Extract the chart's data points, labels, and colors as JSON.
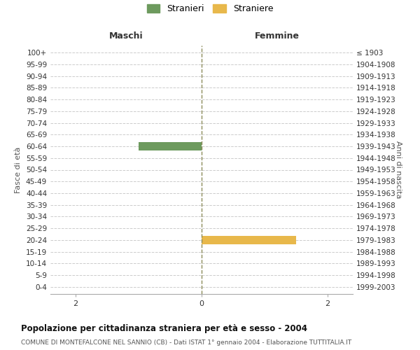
{
  "age_groups": [
    "0-4",
    "5-9",
    "10-14",
    "15-19",
    "20-24",
    "25-29",
    "30-34",
    "35-39",
    "40-44",
    "45-49",
    "50-54",
    "55-59",
    "60-64",
    "65-69",
    "70-74",
    "75-79",
    "80-84",
    "85-89",
    "90-94",
    "95-99",
    "100+"
  ],
  "birth_years": [
    "1999-2003",
    "1994-1998",
    "1989-1993",
    "1984-1988",
    "1979-1983",
    "1974-1978",
    "1969-1973",
    "1964-1968",
    "1959-1963",
    "1954-1958",
    "1949-1953",
    "1944-1948",
    "1939-1943",
    "1934-1938",
    "1929-1933",
    "1924-1928",
    "1919-1923",
    "1914-1918",
    "1909-1913",
    "1904-1908",
    "≤ 1903"
  ],
  "males": [
    0,
    0,
    0,
    0,
    0,
    0,
    0,
    0,
    0,
    0,
    0,
    0,
    1,
    0,
    0,
    0,
    0,
    0,
    0,
    0,
    0
  ],
  "females": [
    0,
    0,
    0,
    0,
    1.5,
    0,
    0,
    0,
    0,
    0,
    0,
    0,
    0,
    0,
    0,
    0,
    0,
    0,
    0,
    0,
    0
  ],
  "male_color": "#6d9a5e",
  "female_color": "#e8b84b",
  "center_line_color": "#8b8b5a",
  "grid_color": "#cccccc",
  "background_color": "#ffffff",
  "title": "Popolazione per cittadinanza straniera per età e sesso - 2004",
  "subtitle": "COMUNE DI MONTEFALCONE NEL SANNIO (CB) - Dati ISTAT 1° gennaio 2004 - Elaborazione TUTTITALIA.IT",
  "xlabel_left": "Maschi",
  "xlabel_right": "Femmine",
  "ylabel_left": "Fasce di età",
  "ylabel_right": "Anni di nascita",
  "legend_male": "Stranieri",
  "legend_female": "Straniere",
  "xlim": 2.4,
  "bar_height": 0.75
}
